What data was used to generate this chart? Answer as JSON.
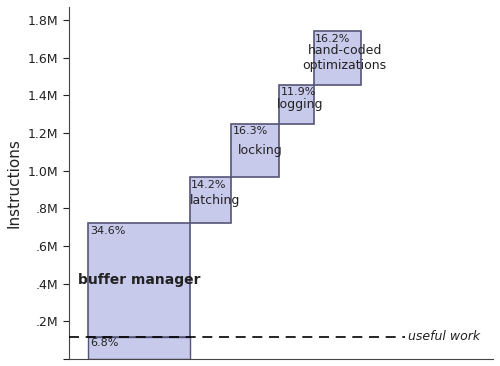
{
  "total": 1740000,
  "segments": [
    {
      "label": "useful work",
      "pct": "6.8%",
      "value": 118320,
      "color": "#c8caec",
      "border": "#555577"
    },
    {
      "label": "buffer manager",
      "pct": "34.6%",
      "value": 601640,
      "color": "#c8caec",
      "border": "#555577"
    },
    {
      "label": "latching",
      "pct": "14.2%",
      "value": 247080,
      "color": "#c8caec",
      "border": "#555577"
    },
    {
      "label": "locking",
      "pct": "16.3%",
      "value": 283620,
      "color": "#c8caec",
      "border": "#555577"
    },
    {
      "label": "logging",
      "pct": "11.9%",
      "value": 207060,
      "color": "#c8caec",
      "border": "#555577"
    },
    {
      "label": "hand-coded\noptimizations",
      "pct": "16.2%",
      "value": 281880,
      "color": "#c8caec",
      "border": "#555577"
    }
  ],
  "ylabel": "Instructions",
  "ytick_vals": [
    0,
    200000,
    400000,
    600000,
    800000,
    1000000,
    1200000,
    1400000,
    1600000,
    1800000
  ],
  "ytick_labels": [
    "",
    ".2M",
    ".4M",
    ".6M",
    ".8M",
    "1.0M",
    "1.2M",
    "1.4M",
    "1.6M",
    "1.8M"
  ],
  "ylim_max": 1870000,
  "fig_width": 5.0,
  "fig_height": 3.66,
  "dpi": 100,
  "bg_color": "#ffffff"
}
